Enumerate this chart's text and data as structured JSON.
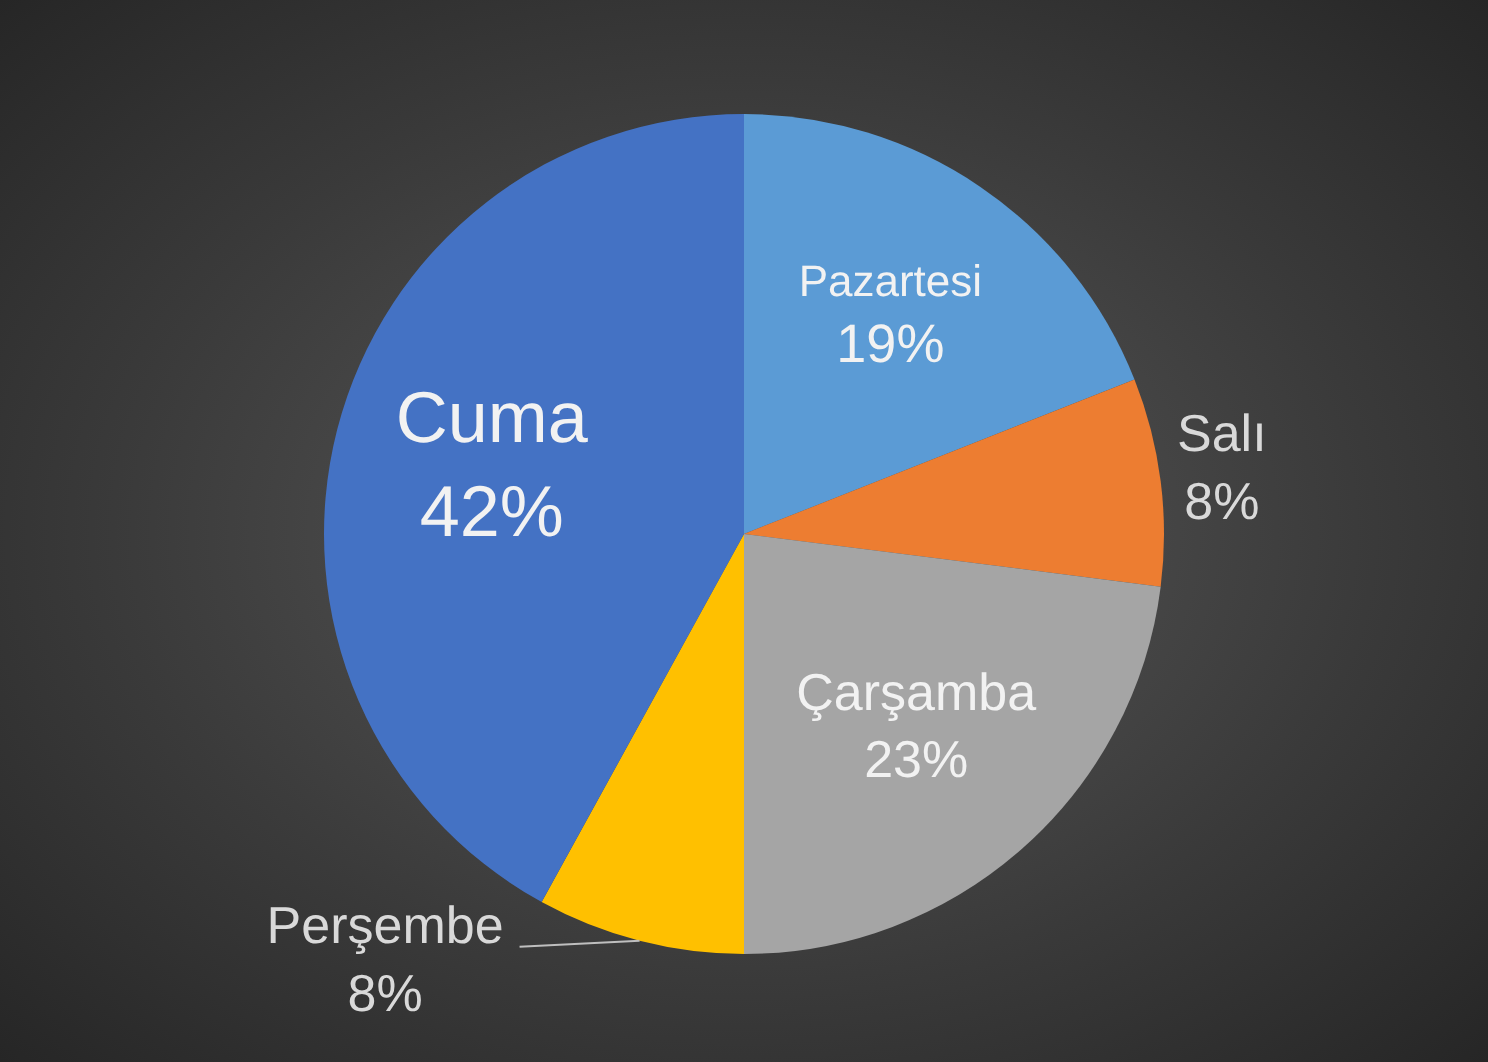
{
  "chart_data": {
    "type": "pie",
    "categories": [
      "Pazartesi",
      "Salı",
      "Çarşamba",
      "Perşembe",
      "Cuma"
    ],
    "values": [
      19,
      8,
      23,
      8,
      42
    ],
    "colors": [
      "#5b9bd5",
      "#ed7d31",
      "#a5a5a5",
      "#ffc000",
      "#4472c4"
    ],
    "value_labels": [
      "19%",
      "8%",
      "23%",
      "8%",
      "42%"
    ],
    "legend": false
  }
}
